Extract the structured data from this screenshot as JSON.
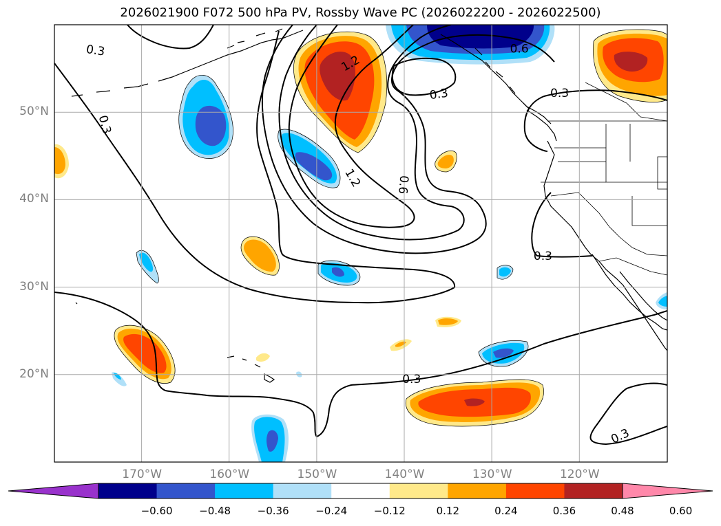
{
  "title": "2026021900 F072 500 hPa PV, Rossby Wave PC (2026022200 - 2026022500)",
  "map": {
    "projection": "equirectangular",
    "lon_range": [
      -180,
      -110
    ],
    "lat_range": [
      10,
      60
    ],
    "gridlines": true,
    "lat_ticks": [
      {
        "lat": 50,
        "label": "50°N"
      },
      {
        "lat": 40,
        "label": "40°N"
      },
      {
        "lat": 30,
        "label": "30°N"
      },
      {
        "lat": 20,
        "label": "20°N"
      }
    ],
    "lon_ticks": [
      {
        "lon": -170,
        "label": "170°W"
      },
      {
        "lon": -160,
        "label": "160°W"
      },
      {
        "lon": -150,
        "label": "150°W"
      },
      {
        "lon": -140,
        "label": "140°W"
      },
      {
        "lon": -130,
        "label": "130°W"
      },
      {
        "lon": -120,
        "label": "120°W"
      }
    ],
    "contour_labels": [
      {
        "text": "0.3",
        "lon": -175.3,
        "lat": 57.1,
        "rot": 8
      },
      {
        "text": "0.3",
        "lon": -174.2,
        "lat": 48.6,
        "rot": 75
      },
      {
        "text": "1.2",
        "lon": -146.2,
        "lat": 55.6,
        "rot": -30
      },
      {
        "text": "1.2",
        "lon": -145.9,
        "lat": 42.5,
        "rot": 60
      },
      {
        "text": "0.6",
        "lon": -140.1,
        "lat": 41.7,
        "rot": 95
      },
      {
        "text": "0.3",
        "lon": -136.1,
        "lat": 52.1,
        "rot": -8
      },
      {
        "text": "0.6",
        "lon": -126.9,
        "lat": 57.3,
        "rot": 0
      },
      {
        "text": "0.3",
        "lon": -122.3,
        "lat": 52.2,
        "rot": 0
      },
      {
        "text": "0.3",
        "lon": -124.2,
        "lat": 33.6,
        "rot": 0
      },
      {
        "text": "0.3",
        "lon": -139.2,
        "lat": 19.5,
        "rot": 0
      },
      {
        "text": "0.3",
        "lon": -115.4,
        "lat": 13.0,
        "rot": -25
      }
    ]
  },
  "colorbar": {
    "labels": [
      "−0.60",
      "−0.48",
      "−0.36",
      "−0.24",
      "−0.12",
      "0.12",
      "0.24",
      "0.36",
      "0.48",
      "0.60"
    ],
    "colors": [
      "#9932cc",
      "#00008b",
      "#3355cc",
      "#00bfff",
      "#b0e0f8",
      "#ffffff",
      "#ffe98a",
      "#ffa500",
      "#ff4500",
      "#b22222",
      "#ff88aa"
    ],
    "extend": "both"
  }
}
